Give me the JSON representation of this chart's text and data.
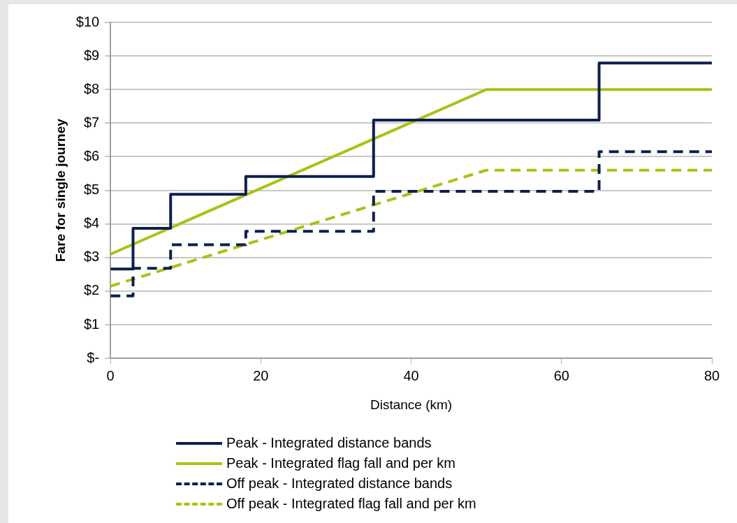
{
  "chart_data": {
    "type": "line",
    "xlabel": "Distance (km)",
    "ylabel": "Fare for single journey",
    "xlim": [
      0,
      80
    ],
    "xticks": [
      0,
      20,
      40,
      60,
      80
    ],
    "ylim": [
      0,
      10
    ],
    "yticks": [
      {
        "value": 0,
        "label": "$-"
      },
      {
        "value": 1,
        "label": "$1"
      },
      {
        "value": 2,
        "label": "$2"
      },
      {
        "value": 3,
        "label": "$3"
      },
      {
        "value": 4,
        "label": "$4"
      },
      {
        "value": 5,
        "label": "$5"
      },
      {
        "value": 6,
        "label": "$6"
      },
      {
        "value": 7,
        "label": "$7"
      },
      {
        "value": 8,
        "label": "$8"
      },
      {
        "value": 9,
        "label": "$9"
      },
      {
        "value": 10,
        "label": "$10"
      }
    ],
    "grid": "y",
    "legend": "bottom",
    "marker": "none",
    "series": [
      {
        "name": "Peak - Integrated distance bands",
        "type": "step",
        "color": "#0d1f4f",
        "line_style": "solid",
        "x": [
          0,
          3,
          8,
          18,
          35,
          65,
          80
        ],
        "values": [
          2.66,
          3.87,
          4.88,
          5.41,
          7.09,
          8.79,
          8.79
        ]
      },
      {
        "name": "Peak - Integrated flag fall and per km",
        "type": "line",
        "color": "#a8c214",
        "line_style": "solid",
        "x": [
          0,
          50,
          80
        ],
        "values": [
          3.1,
          8.0,
          8.0
        ]
      },
      {
        "name": "Off peak - Integrated distance bands",
        "type": "step",
        "color": "#0d1f4f",
        "line_style": "dashed",
        "x": [
          0,
          3,
          8,
          18,
          35,
          65,
          80
        ],
        "values": [
          1.86,
          2.68,
          3.38,
          3.78,
          4.97,
          6.15,
          6.15
        ]
      },
      {
        "name": "Off peak - Integrated flag fall and per km",
        "type": "line",
        "color": "#a8c214",
        "line_style": "dashed",
        "x": [
          0,
          50,
          80
        ],
        "values": [
          2.15,
          5.6,
          5.6
        ]
      }
    ]
  }
}
